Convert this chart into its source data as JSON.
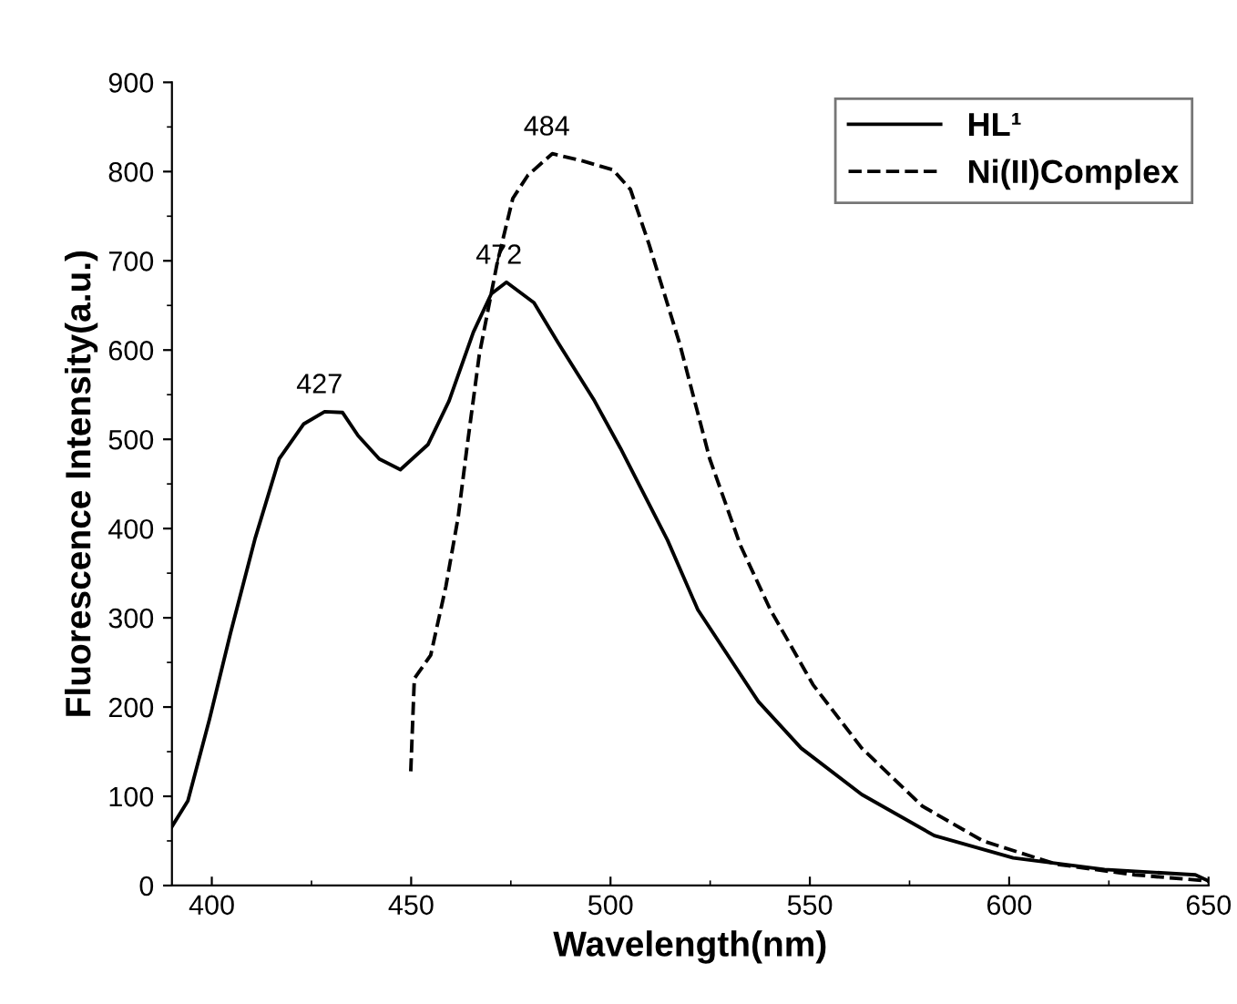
{
  "chart_data": {
    "type": "line",
    "xlabel": "Wavelength(nm)",
    "ylabel": "Fluorescence Intensity(a.u.)",
    "xlim": [
      390,
      650
    ],
    "ylim": [
      0,
      900
    ],
    "xticks": [
      400,
      450,
      500,
      550,
      600,
      650
    ],
    "yticks": [
      0,
      100,
      200,
      300,
      400,
      500,
      600,
      700,
      800,
      900
    ],
    "grid": false,
    "legend": "top right",
    "marker": "none",
    "series": [
      {
        "name": "HL¹",
        "color": "#000000",
        "line_style": "solid",
        "x": [
          390,
          394,
          399.4,
          404.7,
          410.8,
          416.9,
          423,
          428.3,
          432.8,
          436.7,
          442,
          447.3,
          454.2,
          459.5,
          465.6,
          470.1,
          473.9,
          480.8,
          486.9,
          496,
          502.5,
          514.3,
          521.9,
          537.1,
          547.8,
          563,
          581.2,
          601,
          623.9,
          646.7,
          650
        ],
        "values": [
          66,
          95,
          186,
          283,
          388,
          478,
          517,
          531,
          530,
          504,
          478,
          466,
          494,
          543,
          620,
          663,
          676,
          653,
          608,
          543,
          490,
          387,
          309,
          206,
          154,
          102,
          56,
          31,
          18,
          12,
          5
        ]
      },
      {
        "name": "Ni(II)Complex",
        "color": "#000000",
        "line_style": "dashed",
        "x": [
          449.9,
          450.8,
          454.9,
          458.7,
          461.8,
          464,
          467.1,
          471.6,
          475.5,
          479.3,
          485.4,
          493,
          500.6,
          505,
          509.7,
          517.3,
          524.9,
          532.6,
          540.1,
          550.8,
          563,
          578.2,
          593.4,
          611.7,
          631.5,
          650
        ],
        "values": [
          128,
          232,
          258,
          335,
          413,
          491,
          595,
          698,
          770,
          796,
          820,
          812,
          802,
          780,
          718,
          608,
          478,
          381,
          309,
          225,
          154,
          89,
          50,
          24,
          12,
          5
        ]
      }
    ],
    "annotations": [
      {
        "text": "427",
        "x": 427,
        "y": 531
      },
      {
        "text": "472",
        "x": 472,
        "y": 676
      },
      {
        "text": "484",
        "x": 484,
        "y": 820
      }
    ]
  }
}
